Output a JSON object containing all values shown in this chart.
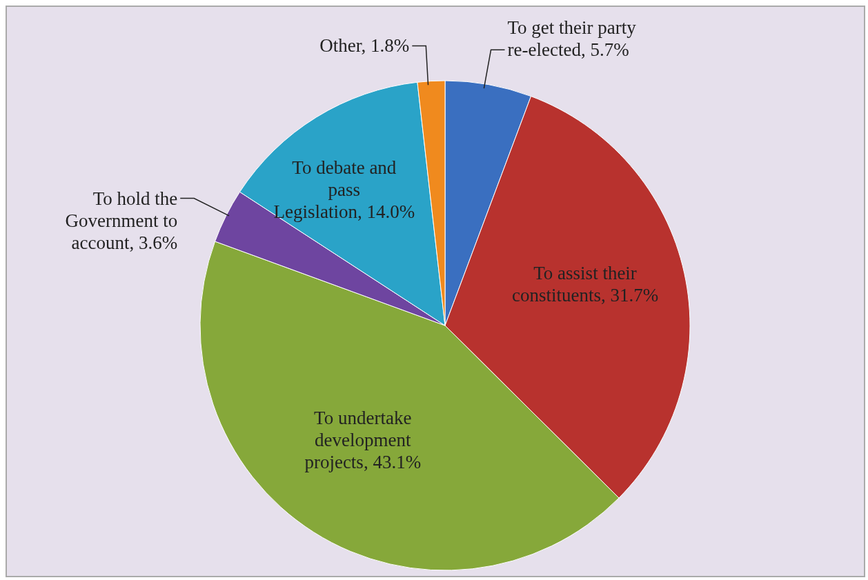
{
  "chart_data": {
    "type": "pie",
    "categories": [
      "To get their party re-elected",
      "To assist their constituents",
      "To undertake development projects",
      "To hold the Government to account",
      "To debate and pass Legislation",
      "Other"
    ],
    "values": [
      5.7,
      31.7,
      43.1,
      3.6,
      14.0,
      1.8
    ],
    "value_labels": [
      "5.7%",
      "31.7%",
      "43.1%",
      "3.6%",
      "14.0%",
      "1.8%"
    ],
    "colors": [
      "#3a6fc0",
      "#b8322e",
      "#86a83a",
      "#6e45a0",
      "#2aa3c8",
      "#f08a1e"
    ],
    "legend": false
  }
}
